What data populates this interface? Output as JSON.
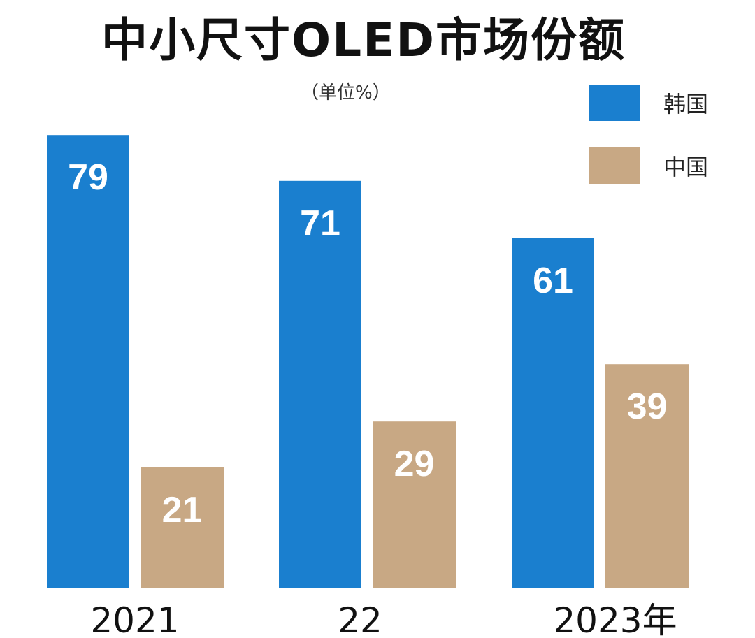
{
  "chart_data": {
    "type": "bar",
    "title": "中小尺寸OLED市场份额",
    "subtitle": "（单位%）",
    "categories": [
      "2021",
      "22",
      "2023年"
    ],
    "series": [
      {
        "name": "韩国",
        "values": [
          79,
          71,
          61
        ],
        "color": "#1a7fcf"
      },
      {
        "name": "中国",
        "values": [
          21,
          29,
          39
        ],
        "color": "#c8a884"
      }
    ],
    "xlabel": "",
    "ylabel": "",
    "ylim": [
      0,
      100
    ],
    "grid": false,
    "legend_position": "top-right"
  }
}
